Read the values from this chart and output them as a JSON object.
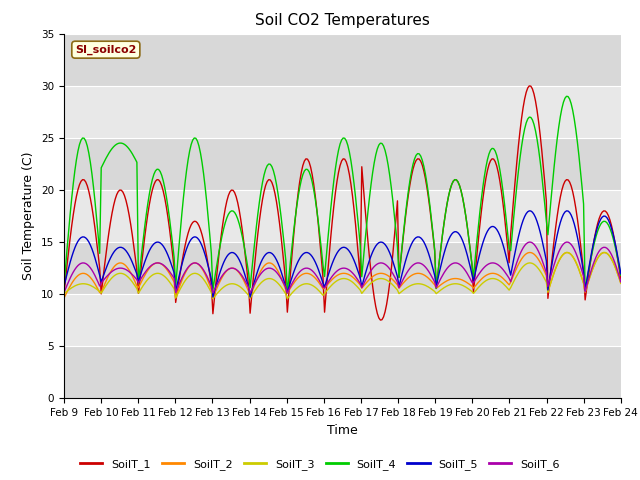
{
  "title": "Soil CO2 Temperatures",
  "xlabel": "Time",
  "ylabel": "Soil Temperature (C)",
  "ylim": [
    0,
    35
  ],
  "yticks": [
    0,
    5,
    10,
    15,
    20,
    25,
    30,
    35
  ],
  "watermark": "SI_soilco2",
  "legend_labels": [
    "SoilT_1",
    "SoilT_2",
    "SoilT_3",
    "SoilT_4",
    "SoilT_5",
    "SoilT_6"
  ],
  "line_colors": [
    "#cc0000",
    "#ff8800",
    "#cccc00",
    "#00cc00",
    "#0000cc",
    "#aa00aa"
  ],
  "xtick_labels": [
    "Feb 9",
    "Feb 10",
    "Feb 11",
    "Feb 12",
    "Feb 13",
    "Feb 14",
    "Feb 15",
    "Feb 16",
    "Feb 17",
    "Feb 18",
    "Feb 19",
    "Feb 20",
    "Feb 21",
    "Feb 22",
    "Feb 23",
    "Feb 24"
  ],
  "band_colors": [
    "#d8d8d8",
    "#e8e8e8"
  ],
  "title_fontsize": 11,
  "axis_label_fontsize": 9,
  "tick_fontsize": 7.5
}
